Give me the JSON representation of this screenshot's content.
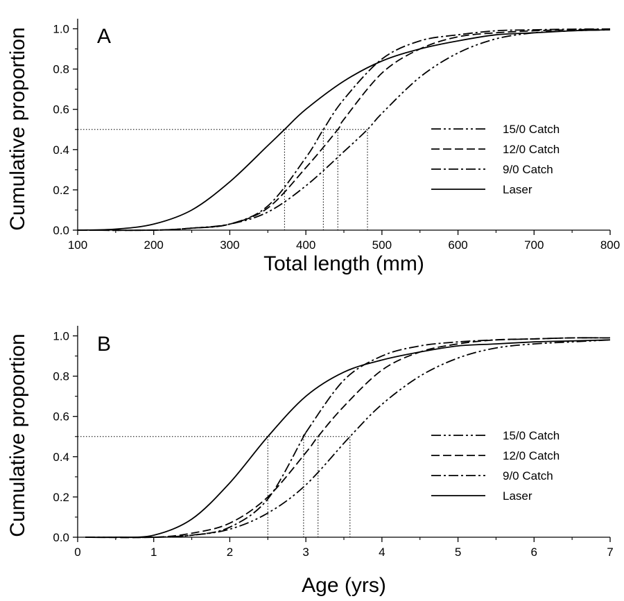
{
  "chart_data": [
    {
      "type": "line",
      "panel_label": "A",
      "xlabel": "Total length (mm)",
      "ylabel": "Cumulative proportion",
      "xlim": [
        100,
        800
      ],
      "ylim": [
        0,
        1.05
      ],
      "xticks": [
        "100",
        "200",
        "300",
        "400",
        "500",
        "600",
        "700",
        "800"
      ],
      "yticks": [
        "0.0",
        "0.2",
        "0.4",
        "0.6",
        "0.8",
        "1.0"
      ],
      "grid": false,
      "legend_position": "right",
      "series": [
        {
          "name": "15/0 Catch",
          "dash": "dash-dot-dot",
          "x": [
            100,
            200,
            250,
            300,
            350,
            400,
            450,
            481,
            500,
            550,
            600,
            650,
            700,
            750,
            800
          ],
          "values": [
            0.0,
            0.0,
            0.01,
            0.03,
            0.09,
            0.22,
            0.39,
            0.5,
            0.58,
            0.76,
            0.88,
            0.95,
            0.98,
            0.99,
            0.995
          ]
        },
        {
          "name": "12/0 Catch",
          "dash": "dashed",
          "x": [
            100,
            200,
            250,
            300,
            350,
            400,
            442,
            450,
            500,
            550,
            600,
            650,
            700,
            750,
            800
          ],
          "values": [
            0.0,
            0.0,
            0.01,
            0.03,
            0.11,
            0.31,
            0.5,
            0.55,
            0.78,
            0.9,
            0.96,
            0.98,
            0.99,
            0.995,
            0.998
          ]
        },
        {
          "name": "9/0 Catch",
          "dash": "dash-dot",
          "x": [
            100,
            200,
            250,
            300,
            350,
            400,
            423,
            450,
            500,
            550,
            600,
            650,
            700,
            750,
            800
          ],
          "values": [
            0.0,
            0.0,
            0.01,
            0.03,
            0.12,
            0.36,
            0.5,
            0.65,
            0.85,
            0.94,
            0.97,
            0.99,
            0.995,
            0.998,
            0.999
          ]
        },
        {
          "name": "Laser",
          "dash": "solid",
          "x": [
            100,
            150,
            200,
            250,
            300,
            350,
            372,
            400,
            450,
            500,
            550,
            600,
            650,
            700,
            750,
            800
          ],
          "values": [
            0.0,
            0.005,
            0.03,
            0.1,
            0.24,
            0.42,
            0.5,
            0.6,
            0.74,
            0.84,
            0.9,
            0.94,
            0.97,
            0.98,
            0.99,
            0.995
          ]
        }
      ],
      "reference_lines": {
        "y": 0.5,
        "x": [
          372,
          423,
          442,
          481
        ]
      }
    },
    {
      "type": "line",
      "panel_label": "B",
      "xlabel": "Age (yrs)",
      "ylabel": "Cumulative proportion",
      "xlim": [
        0,
        7
      ],
      "ylim": [
        0,
        1.05
      ],
      "xticks": [
        "0",
        "1",
        "2",
        "3",
        "4",
        "5",
        "6",
        "7"
      ],
      "yticks": [
        "0.0",
        "0.2",
        "0.4",
        "0.6",
        "0.8",
        "1.0"
      ],
      "grid": false,
      "legend_position": "right",
      "series": [
        {
          "name": "15/0 Catch",
          "dash": "dash-dot-dot",
          "x": [
            0.1,
            1.0,
            1.5,
            2.0,
            2.5,
            3.0,
            3.58,
            4.0,
            4.5,
            5.0,
            5.5,
            6.0,
            6.5,
            7.0
          ],
          "values": [
            0.0,
            0.0,
            0.01,
            0.04,
            0.12,
            0.26,
            0.5,
            0.66,
            0.8,
            0.89,
            0.94,
            0.96,
            0.97,
            0.98
          ]
        },
        {
          "name": "12/0 Catch",
          "dash": "dashed",
          "x": [
            0.1,
            1.0,
            1.5,
            2.0,
            2.5,
            3.0,
            3.16,
            3.5,
            4.0,
            4.5,
            5.0,
            5.5,
            6.0,
            6.5,
            7.0
          ],
          "values": [
            0.0,
            0.0,
            0.02,
            0.07,
            0.2,
            0.42,
            0.5,
            0.65,
            0.83,
            0.92,
            0.96,
            0.98,
            0.985,
            0.99,
            0.99
          ]
        },
        {
          "name": "9/0 Catch",
          "dash": "dash-dot",
          "x": [
            0.1,
            1.0,
            1.5,
            2.0,
            2.5,
            2.97,
            3.0,
            3.5,
            4.0,
            4.5,
            5.0,
            5.5,
            6.0,
            6.5,
            7.0
          ],
          "values": [
            0.0,
            0.0,
            0.01,
            0.05,
            0.19,
            0.5,
            0.52,
            0.78,
            0.9,
            0.95,
            0.97,
            0.98,
            0.985,
            0.99,
            0.99
          ]
        },
        {
          "name": "Laser",
          "dash": "solid",
          "x": [
            0.1,
            0.5,
            1.0,
            1.5,
            2.0,
            2.5,
            3.0,
            3.5,
            4.0,
            4.5,
            5.0,
            5.5,
            6.0,
            6.5,
            7.0
          ],
          "values": [
            0.0,
            0.0,
            0.01,
            0.09,
            0.27,
            0.5,
            0.7,
            0.82,
            0.88,
            0.92,
            0.95,
            0.96,
            0.97,
            0.975,
            0.98
          ]
        }
      ],
      "reference_lines": {
        "y": 0.5,
        "x": [
          2.5,
          2.97,
          3.16,
          3.58
        ]
      }
    }
  ]
}
